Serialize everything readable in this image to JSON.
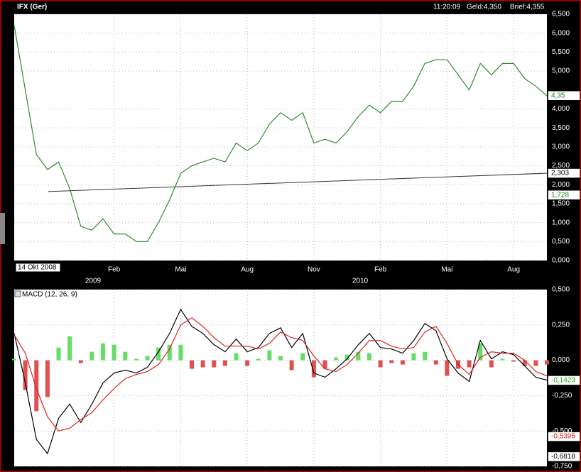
{
  "header": {
    "symbol": "IFX (Ger)",
    "time": "11:20:09",
    "bid": "Geld:4,350",
    "ask": "Brief:4,355"
  },
  "chart_data": [
    {
      "type": "line",
      "color": "#2e8b2e",
      "grid": true,
      "cursor_label": "14 Okt 2008",
      "year_labels": [
        "2009",
        "2010"
      ],
      "categories": [
        null,
        null,
        null,
        null,
        null,
        null,
        null,
        null,
        null,
        "Feb",
        null,
        null,
        null,
        null,
        null,
        "Mai",
        null,
        null,
        null,
        null,
        null,
        "Aug",
        null,
        null,
        null,
        null,
        null,
        "Nov",
        null,
        null,
        null,
        null,
        null,
        "Feb",
        null,
        null,
        null,
        null,
        null,
        "Mai",
        null,
        null,
        null,
        null,
        null,
        "Aug",
        null,
        null,
        null
      ],
      "values": [
        6.2,
        4.5,
        2.8,
        2.4,
        2.6,
        1.9,
        0.9,
        0.8,
        1.1,
        0.7,
        0.7,
        0.5,
        0.5,
        1.0,
        1.6,
        2.3,
        2.5,
        2.6,
        2.7,
        2.6,
        3.1,
        2.9,
        3.1,
        3.6,
        3.9,
        3.7,
        3.9,
        3.1,
        3.2,
        3.1,
        3.4,
        3.8,
        4.1,
        3.9,
        4.2,
        4.2,
        4.6,
        5.2,
        5.3,
        5.3,
        4.9,
        4.5,
        5.2,
        4.9,
        5.2,
        5.2,
        4.8,
        4.6,
        4.35
      ],
      "ylim": [
        0,
        6.5
      ],
      "yticks": [
        {
          "value": 0,
          "label": "0,000"
        },
        {
          "value": 0.5,
          "label": "0,500"
        },
        {
          "value": 1,
          "label": "1,000"
        },
        {
          "value": 1.5,
          "label": "1,500"
        },
        {
          "value": 2,
          "label": "2,000"
        },
        {
          "value": 2.5,
          "label": "2,500"
        },
        {
          "value": 3,
          "label": "3,000"
        },
        {
          "value": 3.5,
          "label": "3,500"
        },
        {
          "value": 4,
          "label": "4,000"
        },
        {
          "value": 5,
          "label": "5,000"
        },
        {
          "value": 5.5,
          "label": "5,500"
        },
        {
          "value": 6,
          "label": "6,000"
        },
        {
          "value": 6.5,
          "label": "6,500"
        }
      ],
      "trendline": {
        "color": "#333333",
        "start": 1.82,
        "end": {
          "value": 2.303,
          "label": "2,303"
        }
      },
      "last_price": {
        "value": 4.35,
        "label": "4,35"
      },
      "low_marker": {
        "value": 1.728,
        "label": "1,728"
      }
    },
    {
      "type": "macd",
      "title": "MACD (12, 26, 9)",
      "grid": true,
      "series": [
        {
          "color": "#000000",
          "values": [
            0.19,
            -0.16,
            -0.56,
            -0.66,
            -0.41,
            -0.31,
            -0.44,
            -0.31,
            -0.16,
            -0.09,
            -0.07,
            -0.09,
            -0.05,
            0.06,
            0.19,
            0.36,
            0.24,
            0.19,
            0.11,
            0.06,
            0.15,
            0.06,
            0.09,
            0.19,
            0.23,
            0.09,
            0.19,
            -0.09,
            -0.12,
            -0.06,
            0.01,
            0.11,
            0.19,
            0.09,
            0.08,
            0.05,
            0.14,
            0.26,
            0.21,
            0.01,
            -0.09,
            -0.15,
            0.14,
            0.01,
            0.06,
            0.04,
            -0.04,
            -0.12,
            -0.14
          ]
        },
        {
          "color": "#dd2222",
          "values": [
            0.18,
            0.05,
            -0.2,
            -0.4,
            -0.5,
            -0.48,
            -0.42,
            -0.37,
            -0.28,
            -0.2,
            -0.13,
            -0.1,
            -0.08,
            -0.03,
            0.08,
            0.25,
            0.3,
            0.24,
            0.16,
            0.1,
            0.1,
            0.1,
            0.08,
            0.12,
            0.2,
            0.16,
            0.14,
            0.03,
            -0.06,
            -0.08,
            -0.03,
            0.05,
            0.14,
            0.14,
            0.1,
            0.08,
            0.09,
            0.2,
            0.24,
            0.12,
            -0.03,
            -0.1,
            0.02,
            0.06,
            0.05,
            0.05,
            0.0,
            -0.08,
            -0.11
          ]
        }
      ],
      "histogram": {
        "positive_color": "#66dd66",
        "negative_color": "#e05050",
        "values": [
          0.01,
          -0.21,
          -0.36,
          -0.26,
          0.09,
          0.17,
          -0.02,
          0.06,
          0.12,
          0.11,
          0.06,
          0.01,
          0.03,
          0.09,
          0.11,
          0.11,
          -0.06,
          -0.05,
          -0.05,
          -0.04,
          0.05,
          -0.04,
          0.01,
          0.07,
          0.03,
          -0.07,
          0.05,
          -0.12,
          -0.06,
          0.02,
          0.04,
          0.06,
          0.05,
          -0.05,
          -0.02,
          -0.03,
          0.05,
          0.06,
          -0.03,
          -0.11,
          -0.06,
          -0.05,
          0.12,
          -0.05,
          0.01,
          -0.01,
          -0.04,
          -0.04,
          -0.03
        ]
      },
      "ylim": [
        -0.75,
        0.5
      ],
      "yticks": [
        {
          "value": -0.75,
          "label": "-0,750"
        },
        {
          "value": -0.5,
          "label": "-0,500"
        },
        {
          "value": -0.25,
          "label": "-0,250"
        },
        {
          "value": 0,
          "label": "0,000"
        },
        {
          "value": 0.25,
          "label": "0,250"
        },
        {
          "value": 0.5,
          "label": "0,500"
        }
      ],
      "markers": [
        {
          "color": "#22aa22",
          "value": -0.1423,
          "label": "-0,1423"
        },
        {
          "color": "#cc2222",
          "value": -0.5395,
          "label": "-0,5395"
        },
        {
          "color": "#000000",
          "value": -0.6818,
          "label": "-0,6818"
        }
      ]
    }
  ]
}
